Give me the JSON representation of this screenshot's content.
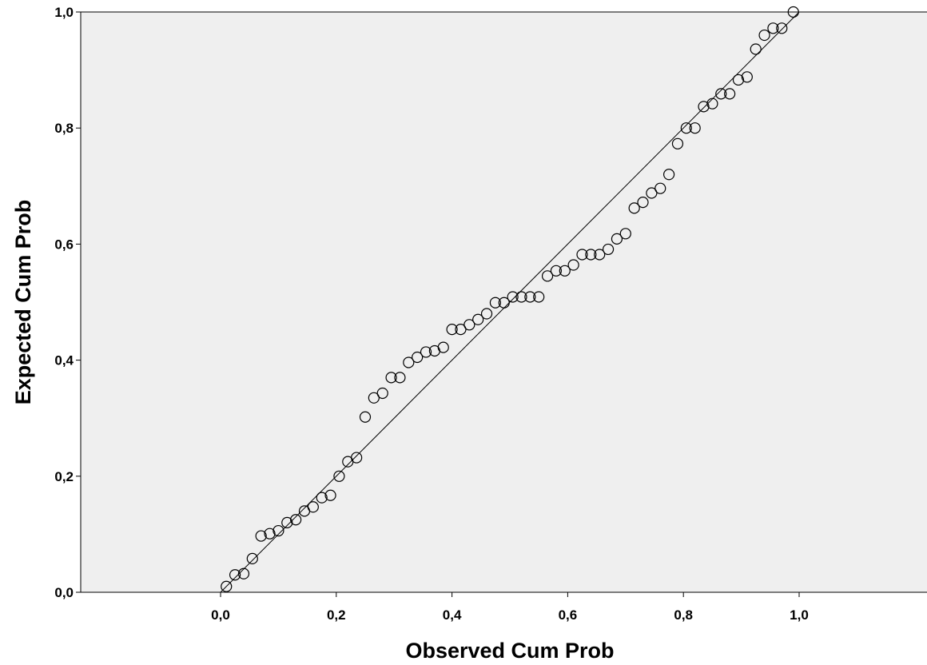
{
  "chart_data": {
    "type": "scatter",
    "xlabel": "Observed Cum Prob",
    "ylabel": "Expected Cum Prob",
    "xlim": [
      -0.24,
      1.22
    ],
    "ylim": [
      0,
      1
    ],
    "x_ticks": [
      "0,0",
      "0,2",
      "0,4",
      "0,6",
      "0,8",
      "1,0"
    ],
    "y_ticks": [
      "0,0",
      "0,2",
      "0,4",
      "0,6",
      "0,8",
      "1,0"
    ],
    "plot_background": "#efefef",
    "reference_line": {
      "from": [
        0,
        0
      ],
      "to": [
        1,
        1
      ]
    },
    "points": [
      [
        0.01,
        0.01
      ],
      [
        0.025,
        0.03
      ],
      [
        0.04,
        0.032
      ],
      [
        0.055,
        0.058
      ],
      [
        0.07,
        0.097
      ],
      [
        0.085,
        0.101
      ],
      [
        0.1,
        0.106
      ],
      [
        0.115,
        0.12
      ],
      [
        0.13,
        0.125
      ],
      [
        0.145,
        0.14
      ],
      [
        0.16,
        0.147
      ],
      [
        0.175,
        0.163
      ],
      [
        0.19,
        0.167
      ],
      [
        0.205,
        0.2
      ],
      [
        0.22,
        0.225
      ],
      [
        0.235,
        0.232
      ],
      [
        0.25,
        0.302
      ],
      [
        0.265,
        0.335
      ],
      [
        0.28,
        0.343
      ],
      [
        0.295,
        0.37
      ],
      [
        0.31,
        0.37
      ],
      [
        0.325,
        0.396
      ],
      [
        0.34,
        0.405
      ],
      [
        0.355,
        0.414
      ],
      [
        0.37,
        0.416
      ],
      [
        0.385,
        0.422
      ],
      [
        0.4,
        0.453
      ],
      [
        0.415,
        0.453
      ],
      [
        0.43,
        0.461
      ],
      [
        0.445,
        0.47
      ],
      [
        0.46,
        0.48
      ],
      [
        0.475,
        0.499
      ],
      [
        0.49,
        0.499
      ],
      [
        0.505,
        0.509
      ],
      [
        0.52,
        0.509
      ],
      [
        0.535,
        0.509
      ],
      [
        0.55,
        0.509
      ],
      [
        0.565,
        0.545
      ],
      [
        0.58,
        0.554
      ],
      [
        0.595,
        0.554
      ],
      [
        0.61,
        0.564
      ],
      [
        0.625,
        0.582
      ],
      [
        0.64,
        0.582
      ],
      [
        0.655,
        0.582
      ],
      [
        0.67,
        0.591
      ],
      [
        0.685,
        0.609
      ],
      [
        0.7,
        0.618
      ],
      [
        0.715,
        0.662
      ],
      [
        0.73,
        0.672
      ],
      [
        0.745,
        0.688
      ],
      [
        0.76,
        0.696
      ],
      [
        0.775,
        0.72
      ],
      [
        0.79,
        0.773
      ],
      [
        0.805,
        0.8
      ],
      [
        0.82,
        0.8
      ],
      [
        0.835,
        0.837
      ],
      [
        0.85,
        0.842
      ],
      [
        0.865,
        0.859
      ],
      [
        0.88,
        0.859
      ],
      [
        0.895,
        0.883
      ],
      [
        0.91,
        0.888
      ],
      [
        0.925,
        0.936
      ],
      [
        0.94,
        0.96
      ],
      [
        0.955,
        0.972
      ],
      [
        0.97,
        0.972
      ],
      [
        0.99,
        1.0
      ]
    ]
  }
}
